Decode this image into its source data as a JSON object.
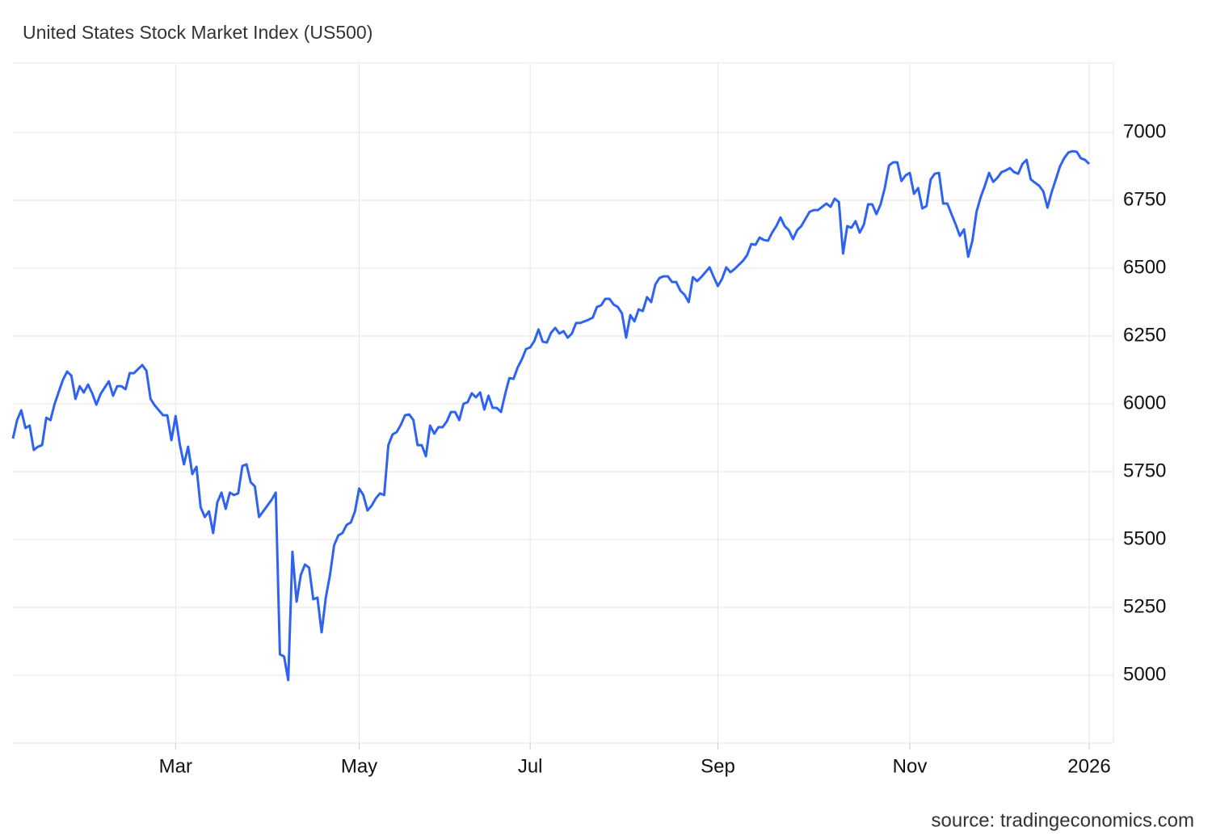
{
  "chart_data": {
    "type": "line",
    "title": "United States Stock Market Index (US500)",
    "source": "source: tradingeconomics.com",
    "categories": [
      null,
      null,
      null,
      null,
      null,
      null,
      null,
      null,
      null,
      null,
      null,
      null,
      null,
      null,
      null,
      null,
      null,
      null,
      null,
      null,
      null,
      null,
      null,
      null,
      null,
      null,
      null,
      null,
      null,
      null,
      null,
      null,
      null,
      null,
      null,
      null,
      null,
      null,
      null,
      "Mar",
      null,
      null,
      null,
      null,
      null,
      null,
      null,
      null,
      null,
      null,
      null,
      null,
      null,
      null,
      null,
      null,
      null,
      null,
      null,
      null,
      null,
      null,
      null,
      null,
      null,
      null,
      null,
      null,
      null,
      null,
      null,
      null,
      null,
      null,
      null,
      null,
      null,
      null,
      null,
      null,
      null,
      null,
      null,
      "May",
      null,
      null,
      null,
      null,
      null,
      null,
      null,
      null,
      null,
      null,
      null,
      null,
      null,
      null,
      null,
      null,
      null,
      null,
      null,
      null,
      null,
      null,
      null,
      null,
      null,
      null,
      null,
      null,
      null,
      null,
      null,
      null,
      null,
      null,
      null,
      null,
      null,
      null,
      null,
      null,
      "Jul",
      null,
      null,
      null,
      null,
      null,
      null,
      null,
      null,
      null,
      null,
      null,
      null,
      null,
      null,
      null,
      null,
      null,
      null,
      null,
      null,
      null,
      null,
      null,
      null,
      null,
      null,
      null,
      null,
      null,
      null,
      null,
      null,
      null,
      null,
      null,
      null,
      null,
      null,
      null,
      null,
      null,
      null,
      null,
      null,
      "Sep",
      null,
      null,
      null,
      null,
      null,
      null,
      null,
      null,
      null,
      null,
      null,
      null,
      null,
      null,
      null,
      null,
      null,
      null,
      null,
      null,
      null,
      null,
      null,
      null,
      null,
      null,
      null,
      null,
      null,
      null,
      null,
      null,
      null,
      null,
      null,
      null,
      null,
      null,
      null,
      null,
      null,
      null,
      null,
      null,
      null,
      "Nov",
      null,
      null,
      null,
      null,
      null,
      null,
      null,
      null,
      null,
      null,
      null,
      null,
      null,
      null,
      null,
      null,
      null,
      null,
      null,
      null,
      null,
      null,
      null,
      null,
      null,
      null,
      null,
      null,
      null,
      null,
      null,
      null,
      null,
      null,
      null,
      null,
      null,
      null,
      null,
      null,
      null,
      null,
      "2026"
    ],
    "series": [
      {
        "name": "US500",
        "color": "#2e63f2",
        "values": [
          5872,
          5940,
          5976,
          5911,
          5920,
          5830,
          5842,
          5848,
          5949,
          5940,
          6000,
          6045,
          6089,
          6119,
          6104,
          6018,
          6065,
          6042,
          6071,
          6039,
          5997,
          6036,
          6060,
          6083,
          6030,
          6065,
          6065,
          6054,
          6113,
          6113,
          6128,
          6143,
          6122,
          6018,
          5994,
          5976,
          5958,
          5958,
          5866,
          5955,
          5851,
          5777,
          5842,
          5741,
          5768,
          5619,
          5583,
          5604,
          5524,
          5637,
          5673,
          5613,
          5673,
          5664,
          5670,
          5771,
          5777,
          5711,
          5696,
          5583,
          5604,
          5625,
          5646,
          5673,
          5077,
          5069,
          4982,
          5455,
          5271,
          5369,
          5408,
          5396,
          5280,
          5286,
          5158,
          5286,
          5369,
          5479,
          5515,
          5524,
          5554,
          5563,
          5604,
          5688,
          5664,
          5607,
          5625,
          5652,
          5670,
          5664,
          5848,
          5887,
          5896,
          5923,
          5958,
          5961,
          5940,
          5848,
          5848,
          5807,
          5920,
          5890,
          5914,
          5914,
          5935,
          5970,
          5970,
          5940,
          6000,
          6006,
          6039,
          6024,
          6042,
          5979,
          6030,
          5985,
          5985,
          5970,
          6036,
          6095,
          6092,
          6134,
          6164,
          6202,
          6208,
          6232,
          6274,
          6229,
          6226,
          6262,
          6280,
          6259,
          6268,
          6244,
          6259,
          6298,
          6298,
          6304,
          6310,
          6318,
          6357,
          6363,
          6387,
          6387,
          6366,
          6357,
          6333,
          6244,
          6327,
          6304,
          6348,
          6342,
          6393,
          6375,
          6440,
          6464,
          6470,
          6470,
          6449,
          6449,
          6417,
          6402,
          6375,
          6467,
          6452,
          6467,
          6485,
          6503,
          6467,
          6434,
          6461,
          6503,
          6485,
          6497,
          6512,
          6527,
          6548,
          6589,
          6586,
          6613,
          6604,
          6601,
          6631,
          6655,
          6687,
          6655,
          6640,
          6607,
          6640,
          6655,
          6682,
          6708,
          6714,
          6714,
          6726,
          6738,
          6726,
          6756,
          6744,
          6554,
          6655,
          6649,
          6673,
          6631,
          6661,
          6735,
          6735,
          6699,
          6735,
          6795,
          6878,
          6890,
          6890,
          6821,
          6842,
          6851,
          6774,
          6795,
          6720,
          6729,
          6827,
          6848,
          6851,
          6738,
          6738,
          6699,
          6661,
          6619,
          6643,
          6542,
          6601,
          6708,
          6762,
          6804,
          6851,
          6818,
          6833,
          6854,
          6860,
          6869,
          6854,
          6848,
          6884,
          6899,
          6827,
          6815,
          6804,
          6783,
          6723,
          6780,
          6827,
          6875,
          6905,
          6926,
          6931,
          6929,
          6905,
          6899,
          6884
        ]
      }
    ],
    "ylim": [
      4750,
      7250
    ],
    "yticks": [
      5000,
      5250,
      5500,
      5750,
      6000,
      6250,
      6500,
      6750,
      7000
    ],
    "grid": true
  }
}
